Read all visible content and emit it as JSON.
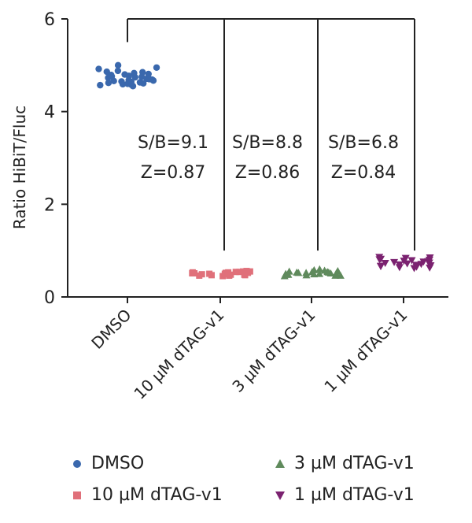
{
  "chart_data": {
    "type": "scatter",
    "ylabel": "Ratio HiBiT/Fluc",
    "xlabel": "",
    "ylim": [
      0,
      6
    ],
    "yticks": [
      0,
      2,
      4,
      6
    ],
    "categories": [
      "DMSO",
      "10 µM dTAG-v1",
      "3 µM dTAG-v1",
      "1 µM dTAG-v1"
    ],
    "series": [
      {
        "name": "DMSO",
        "color": "#3a68ad",
        "marker": "circle",
        "values": [
          4.62,
          4.75,
          4.58,
          4.8,
          4.66,
          4.71,
          4.85,
          4.6,
          4.77,
          4.68,
          4.92,
          4.55,
          4.83,
          4.65,
          4.72,
          4.88,
          4.59,
          4.76,
          4.95,
          4.63,
          4.7,
          4.81,
          4.57,
          4.74,
          4.67,
          4.79,
          4.61,
          4.86,
          4.69,
          4.73,
          5.0,
          4.64
        ]
      },
      {
        "name": "10 µM dTAG-v1",
        "color": "#e0707a",
        "marker": "square",
        "values": [
          0.5,
          0.53,
          0.47,
          0.55,
          0.49,
          0.52,
          0.46,
          0.54,
          0.51,
          0.48,
          0.56,
          0.5,
          0.45,
          0.53,
          0.49,
          0.52,
          0.47,
          0.51,
          0.54,
          0.48,
          0.5,
          0.46,
          0.55,
          0.52
        ]
      },
      {
        "name": "3 µM dTAG-v1",
        "color": "#5f8a5c",
        "marker": "triangle",
        "values": [
          0.5,
          0.54,
          0.47,
          0.57,
          0.49,
          0.52,
          0.46,
          0.6,
          0.51,
          0.48,
          0.55,
          0.5,
          0.45,
          0.53,
          0.49,
          0.58,
          0.47,
          0.52,
          0.56,
          0.48,
          0.51,
          0.54,
          0.46,
          0.53
        ]
      },
      {
        "name": "1 µM dTAG-v1",
        "color": "#7b2270",
        "marker": "triangle-down",
        "values": [
          0.72,
          0.8,
          0.65,
          0.84,
          0.7,
          0.76,
          0.62,
          0.86,
          0.68,
          0.74,
          0.79,
          0.66,
          0.73,
          0.82,
          0.69,
          0.77,
          0.63,
          0.75,
          0.71,
          0.85,
          0.67,
          0.78,
          0.64,
          0.81
        ]
      }
    ],
    "annotations": [
      {
        "category": "10 µM dTAG-v1",
        "lines": [
          "S/B=9.1",
          "Z=0.87"
        ]
      },
      {
        "category": "3 µM dTAG-v1",
        "lines": [
          "S/B=8.8",
          "Z=0.86"
        ]
      },
      {
        "category": "1 µM dTAG-v1",
        "lines": [
          "S/B=6.8",
          "Z=0.84"
        ]
      }
    ],
    "bracket_top_y": 6.0,
    "bracket_start_y": 5.5,
    "bracket_end_y": 1.0,
    "legend_position": "bottom",
    "grid": false
  }
}
